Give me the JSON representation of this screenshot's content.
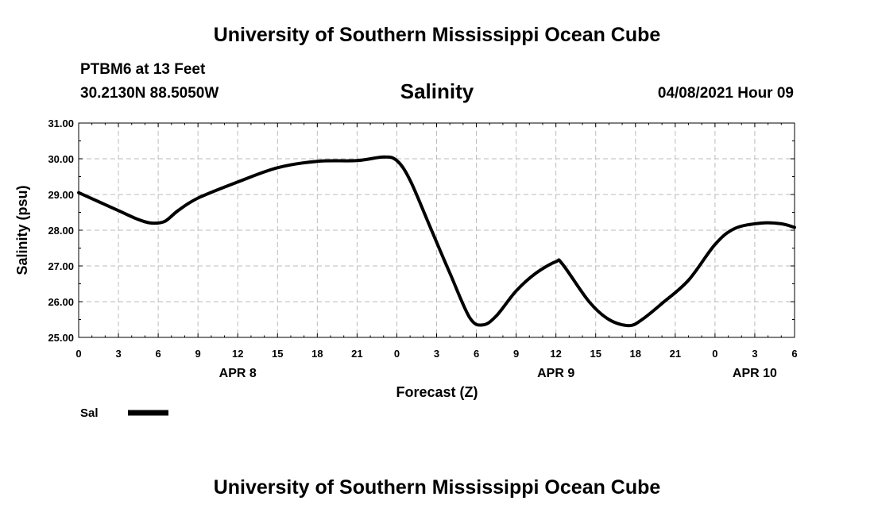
{
  "header": {
    "title": "University of Southern Mississippi Ocean Cube",
    "station": "PTBM6 at 13 Feet",
    "coords": "30.2130N  88.5050W",
    "run_time": "04/08/2021 Hour 09"
  },
  "footer": {
    "title": "University of Southern Mississippi Ocean Cube"
  },
  "chart_data": {
    "type": "line",
    "title": "Salinity",
    "xlabel": "Forecast (Z)",
    "ylabel": "Salinity (psu)",
    "ylim": [
      25.0,
      31.0
    ],
    "xlim": [
      0,
      54
    ],
    "grid": true,
    "y_ticks": [
      25.0,
      26.0,
      27.0,
      28.0,
      29.0,
      30.0,
      31.0
    ],
    "y_tick_labels": [
      "25.00",
      "26.00",
      "27.00",
      "28.00",
      "29.00",
      "30.00",
      "31.00"
    ],
    "x_ticks": [
      0,
      3,
      6,
      9,
      12,
      15,
      18,
      21,
      24,
      27,
      30,
      33,
      36,
      39,
      42,
      45,
      48,
      51,
      54
    ],
    "x_tick_labels": [
      "0",
      "3",
      "6",
      "9",
      "12",
      "15",
      "18",
      "21",
      "0",
      "3",
      "6",
      "9",
      "12",
      "15",
      "18",
      "21",
      "0",
      "3",
      "6"
    ],
    "day_labels": [
      {
        "label": "APR 8",
        "x": 12
      },
      {
        "label": "APR 9",
        "x": 36
      },
      {
        "label": "APR 10",
        "x": 51
      }
    ],
    "legend": [
      {
        "name": "Sal",
        "color": "#000000"
      }
    ],
    "series": [
      {
        "name": "Sal",
        "x": [
          0,
          1.5,
          3,
          4.5,
          5.5,
          6.5,
          7.5,
          9,
          12,
          15,
          18,
          21,
          23,
          24,
          25,
          26.5,
          28,
          29.5,
          30.5,
          31.5,
          33,
          34.5,
          36,
          36.5,
          38.5,
          40,
          41.5,
          42.5,
          44,
          46,
          48,
          49.5,
          51.5,
          53,
          54
        ],
        "y": [
          29.05,
          28.8,
          28.55,
          28.3,
          28.2,
          28.25,
          28.55,
          28.9,
          29.35,
          29.75,
          29.93,
          29.95,
          30.05,
          29.95,
          29.4,
          28.1,
          26.8,
          25.55,
          25.35,
          25.6,
          26.3,
          26.8,
          27.12,
          27.05,
          26.0,
          25.5,
          25.33,
          25.5,
          25.95,
          26.6,
          27.6,
          28.05,
          28.2,
          28.18,
          28.08
        ]
      }
    ]
  }
}
